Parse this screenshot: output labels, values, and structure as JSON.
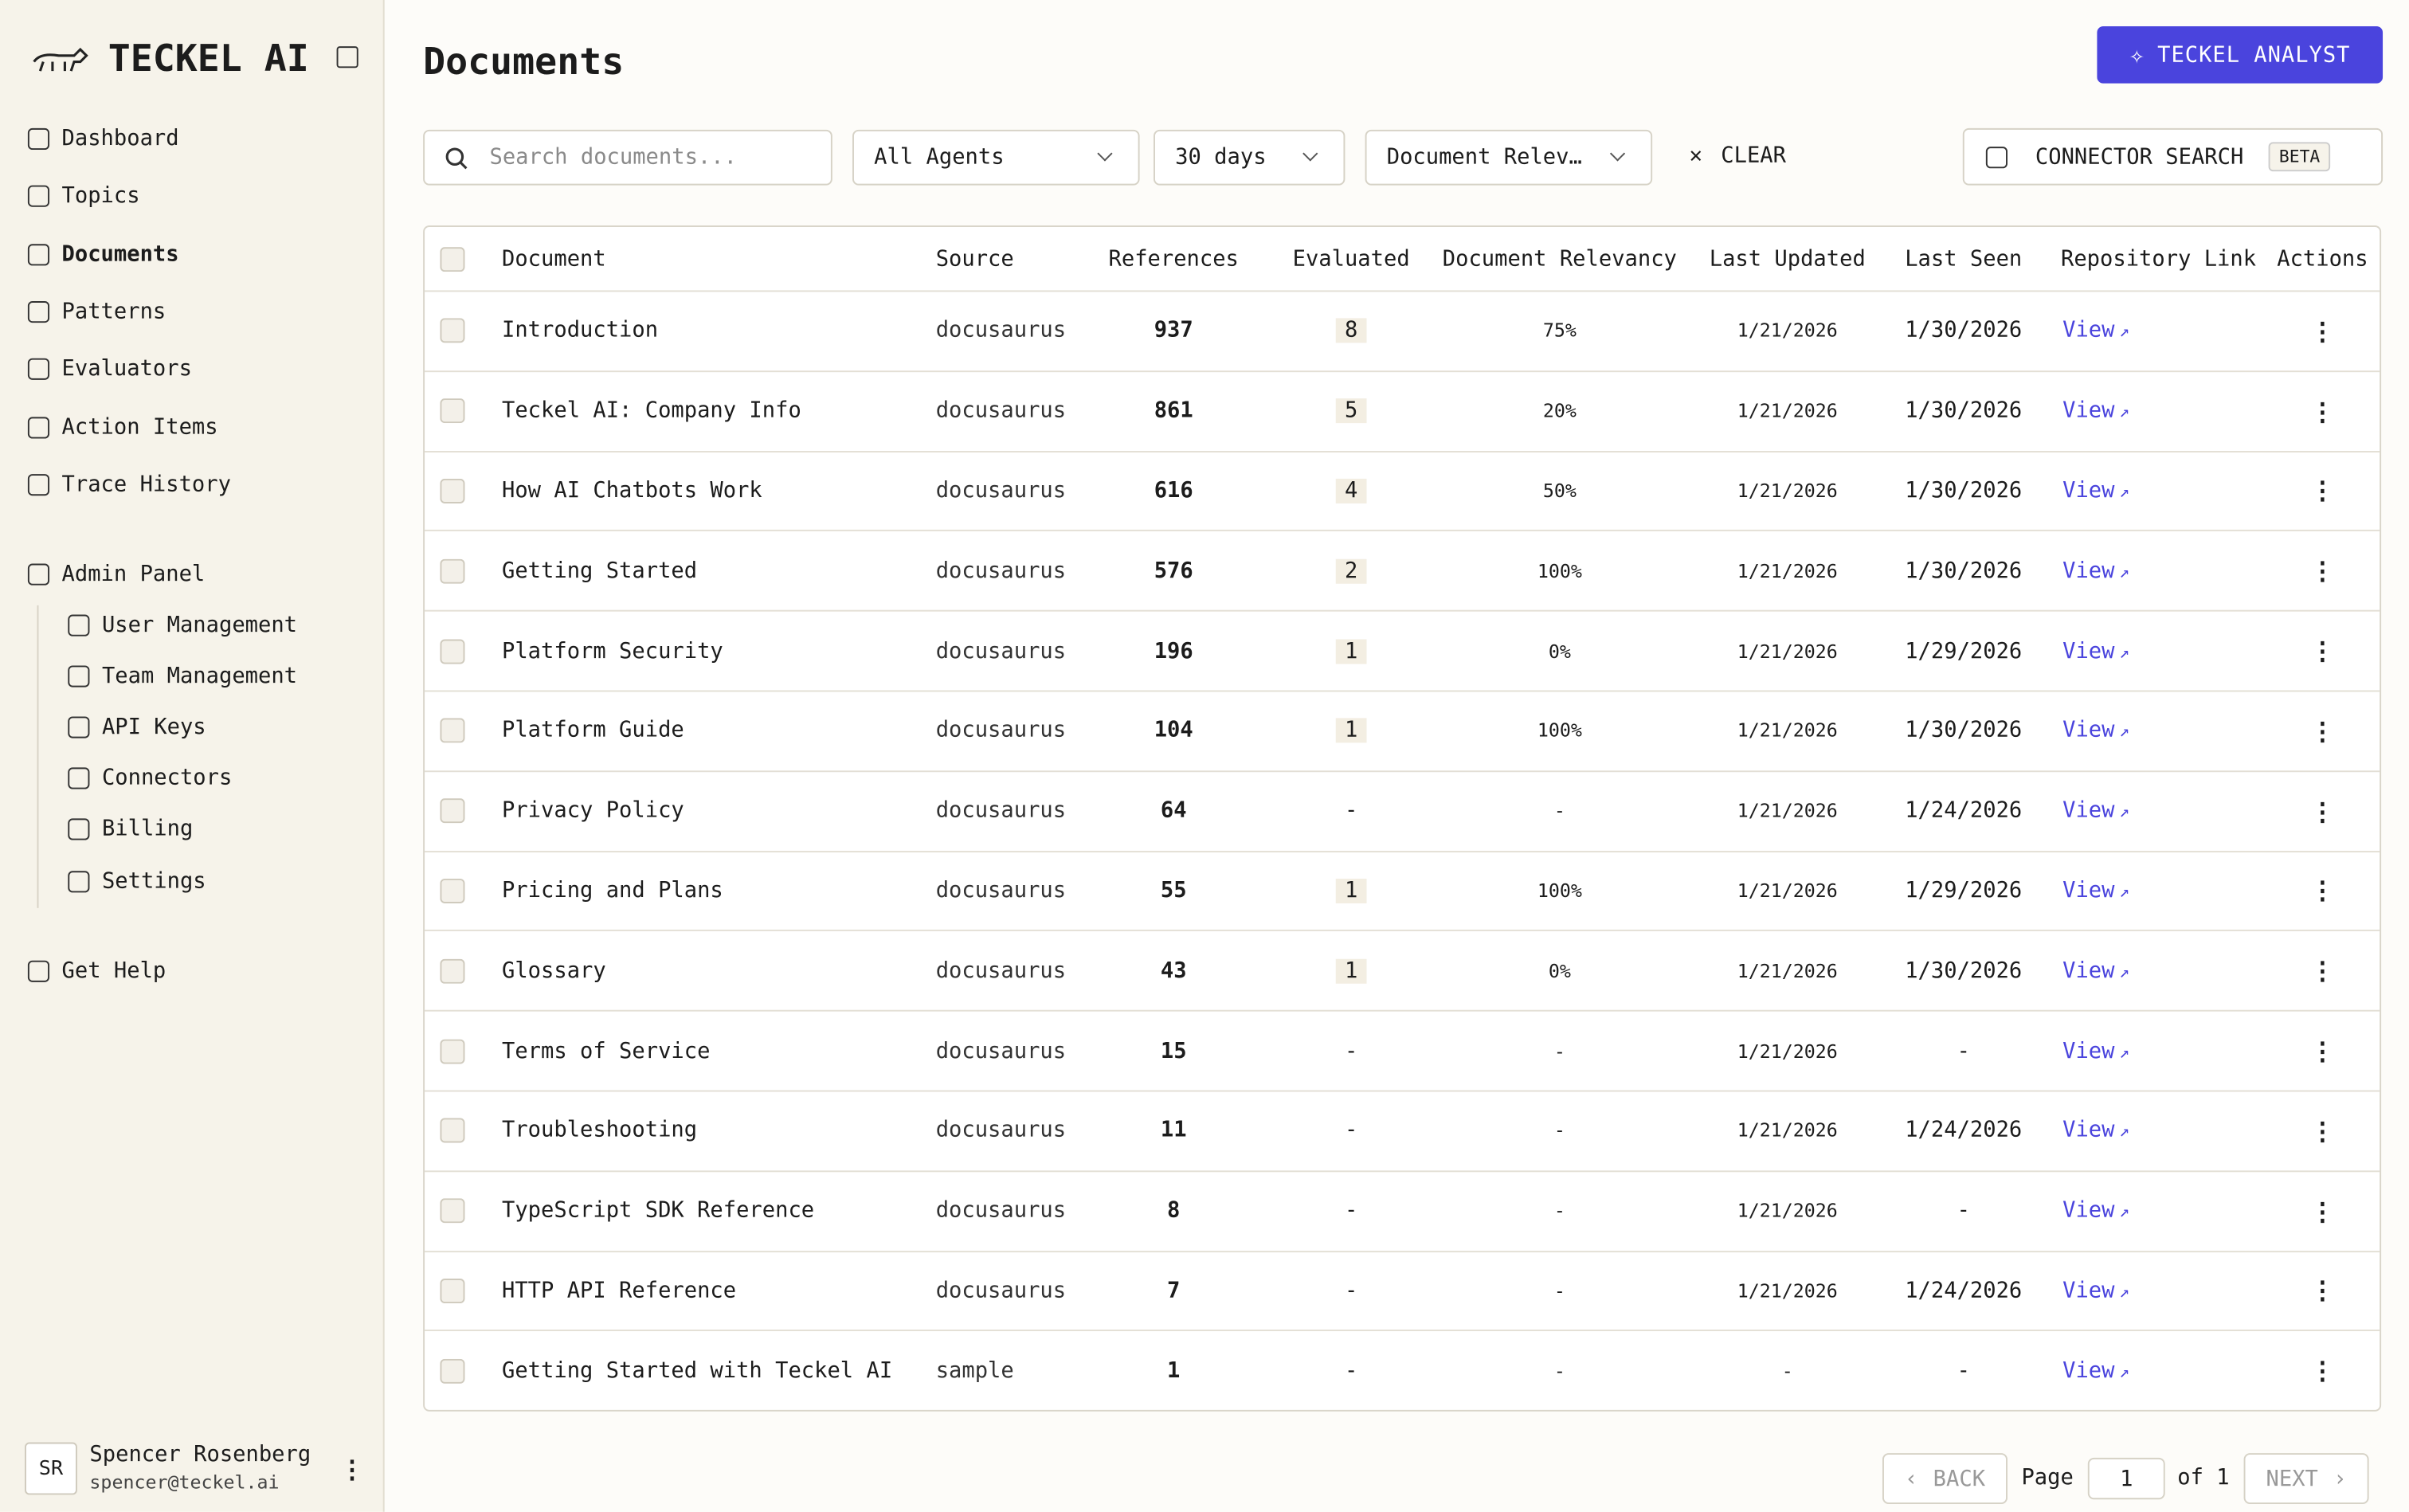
{
  "sidebar": {
    "brand": "TECKEL AI",
    "nav": [
      "Dashboard",
      "Topics",
      "Documents",
      "Patterns",
      "Evaluators",
      "Action Items",
      "Trace History"
    ],
    "admin": {
      "label": "Admin Panel",
      "items": [
        "User Management",
        "Team Management",
        "API Keys",
        "Connectors",
        "Billing",
        "Settings"
      ]
    },
    "help": "Get Help",
    "user": {
      "initials": "SR",
      "name": "Spencer Rosenberg",
      "email": "spencer@teckel.ai"
    }
  },
  "header": {
    "title": "Documents",
    "analyst_button": "TECKEL ANALYST"
  },
  "filters": {
    "search_placeholder": "Search documents...",
    "agents": "All Agents",
    "period": "30 days",
    "relevancy": "Document Relev…",
    "clear": "CLEAR",
    "connector_search": "CONNECTOR SEARCH",
    "beta": "BETA"
  },
  "table": {
    "columns": [
      "Document",
      "Source",
      "References",
      "Evaluated",
      "Document Relevancy",
      "Last Updated",
      "Last Seen",
      "Repository Link",
      "Actions"
    ],
    "rows": [
      [
        "Introduction",
        "docusaurus",
        "937",
        "8",
        "75%",
        "1/21/2026",
        "1/30/2026",
        "View"
      ],
      [
        "Teckel AI: Company Info",
        "docusaurus",
        "861",
        "5",
        "20%",
        "1/21/2026",
        "1/30/2026",
        "View"
      ],
      [
        "How AI Chatbots Work",
        "docusaurus",
        "616",
        "4",
        "50%",
        "1/21/2026",
        "1/30/2026",
        "View"
      ],
      [
        "Getting Started",
        "docusaurus",
        "576",
        "2",
        "100%",
        "1/21/2026",
        "1/30/2026",
        "View"
      ],
      [
        "Platform Security",
        "docusaurus",
        "196",
        "1",
        "0%",
        "1/21/2026",
        "1/29/2026",
        "View"
      ],
      [
        "Platform Guide",
        "docusaurus",
        "104",
        "1",
        "100%",
        "1/21/2026",
        "1/30/2026",
        "View"
      ],
      [
        "Privacy Policy",
        "docusaurus",
        "64",
        "-",
        "-",
        "1/21/2026",
        "1/24/2026",
        "View"
      ],
      [
        "Pricing and Plans",
        "docusaurus",
        "55",
        "1",
        "100%",
        "1/21/2026",
        "1/29/2026",
        "View"
      ],
      [
        "Glossary",
        "docusaurus",
        "43",
        "1",
        "0%",
        "1/21/2026",
        "1/30/2026",
        "View"
      ],
      [
        "Terms of Service",
        "docusaurus",
        "15",
        "-",
        "-",
        "1/21/2026",
        "-",
        "View"
      ],
      [
        "Troubleshooting",
        "docusaurus",
        "11",
        "-",
        "-",
        "1/21/2026",
        "1/24/2026",
        "View"
      ],
      [
        "TypeScript SDK Reference",
        "docusaurus",
        "8",
        "-",
        "-",
        "1/21/2026",
        "-",
        "View"
      ],
      [
        "HTTP API Reference",
        "docusaurus",
        "7",
        "-",
        "-",
        "1/21/2026",
        "1/24/2026",
        "View"
      ],
      [
        "Getting Started with Teckel AI",
        "sample",
        "1",
        "-",
        "-",
        "-",
        "-",
        "View"
      ]
    ]
  },
  "pagination": {
    "back": "BACK",
    "page_label": "Page",
    "page": "1",
    "of": "of 1",
    "next": "NEXT"
  }
}
